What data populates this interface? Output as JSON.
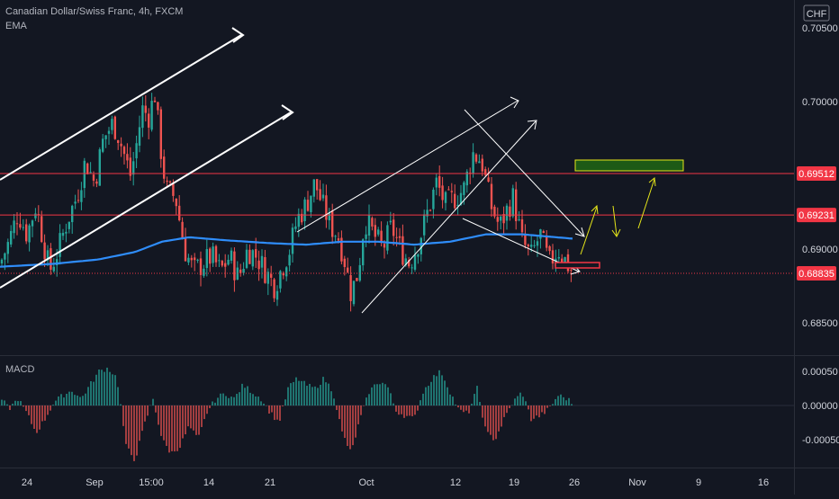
{
  "header": {
    "symbol_line": "Canadian Dollar/Swiss Franc, 4h, FXCM",
    "indicator": "EMA",
    "currency": "CHF"
  },
  "colors": {
    "background": "#131722",
    "candle_up": "#26a69a",
    "candle_down": "#ef5350",
    "ema_line": "#2f8dfa",
    "resistance_line": "#f23645",
    "drawing_white": "#ffffff",
    "drawing_yellow": "#e6e619",
    "target_box": "#1e5a16",
    "target_box_border": "#e6e619",
    "price_label_bg": "#f23645",
    "gridline": "#1e222d",
    "axis_text": "#d1d4dc"
  },
  "chart_data": [
    {
      "type": "candlestick",
      "title": "Canadian Dollar/Swiss Franc, 4h, FXCM",
      "ylim": [
        0.682,
        0.707
      ],
      "y_ticks": [
        "0.70500",
        "0.70000",
        "0.69000",
        "0.68500"
      ],
      "x_ticks": [
        "24",
        "Sep",
        "15:00",
        "14",
        "21",
        "Oct",
        "12",
        "19",
        "26",
        "Nov",
        "9",
        "16"
      ],
      "price_labels": [
        {
          "label": "0.69512",
          "value": 0.69512
        },
        {
          "label": "0.69231",
          "value": 0.69231
        },
        {
          "label": "0.68835",
          "value": 0.68835
        }
      ],
      "horizontal_levels": [
        0.69512,
        0.69231
      ],
      "current_price": 0.68835,
      "close_path": [
        [
          0,
          0.689
        ],
        [
          10,
          0.6905
        ],
        [
          20,
          0.6925
        ],
        [
          30,
          0.691
        ],
        [
          40,
          0.693
        ],
        [
          55,
          0.6885
        ],
        [
          65,
          0.69
        ],
        [
          75,
          0.692
        ],
        [
          85,
          0.6935
        ],
        [
          95,
          0.696
        ],
        [
          105,
          0.6945
        ],
        [
          115,
          0.6975
        ],
        [
          125,
          0.6985
        ],
        [
          130,
          0.698
        ],
        [
          135,
          0.697
        ],
        [
          145,
          0.695
        ],
        [
          150,
          0.6965
        ],
        [
          158,
          0.6995
        ],
        [
          165,
          0.699
        ],
        [
          172,
          0.7005
        ],
        [
          180,
          0.696
        ],
        [
          185,
          0.694
        ],
        [
          195,
          0.6935
        ],
        [
          205,
          0.69
        ],
        [
          215,
          0.6885
        ],
        [
          225,
          0.689
        ],
        [
          235,
          0.6895
        ],
        [
          245,
          0.6885
        ],
        [
          255,
          0.6895
        ],
        [
          265,
          0.688
        ],
        [
          275,
          0.69
        ],
        [
          285,
          0.6895
        ],
        [
          295,
          0.6885
        ],
        [
          305,
          0.6875
        ],
        [
          315,
          0.689
        ],
        [
          322,
          0.69
        ],
        [
          330,
          0.692
        ],
        [
          340,
          0.693
        ],
        [
          350,
          0.6945
        ],
        [
          358,
          0.693
        ],
        [
          368,
          0.6915
        ],
        [
          375,
          0.691
        ],
        [
          382,
          0.6895
        ],
        [
          390,
          0.687
        ],
        [
          398,
          0.6885
        ],
        [
          405,
          0.692
        ],
        [
          415,
          0.691
        ],
        [
          425,
          0.69
        ],
        [
          435,
          0.6915
        ],
        [
          445,
          0.69
        ],
        [
          455,
          0.689
        ],
        [
          465,
          0.6905
        ],
        [
          475,
          0.6925
        ],
        [
          485,
          0.6945
        ],
        [
          495,
          0.693
        ],
        [
          505,
          0.6935
        ],
        [
          515,
          0.694
        ],
        [
          525,
          0.6965
        ],
        [
          535,
          0.696
        ],
        [
          545,
          0.693
        ],
        [
          555,
          0.6915
        ],
        [
          562,
          0.6925
        ],
        [
          570,
          0.6935
        ],
        [
          580,
          0.6905
        ],
        [
          590,
          0.6895
        ],
        [
          600,
          0.691
        ],
        [
          610,
          0.689
        ],
        [
          620,
          0.69
        ],
        [
          630,
          0.689
        ],
        [
          637,
          0.68835
        ]
      ],
      "ema_path": [
        [
          0,
          0.6888
        ],
        [
          60,
          0.689
        ],
        [
          110,
          0.6893
        ],
        [
          150,
          0.6898
        ],
        [
          180,
          0.6905
        ],
        [
          210,
          0.6908
        ],
        [
          250,
          0.6906
        ],
        [
          300,
          0.6904
        ],
        [
          340,
          0.6903
        ],
        [
          380,
          0.6905
        ],
        [
          420,
          0.6905
        ],
        [
          460,
          0.6903
        ],
        [
          500,
          0.6905
        ],
        [
          540,
          0.691
        ],
        [
          580,
          0.691
        ],
        [
          637,
          0.6907
        ]
      ]
    },
    {
      "type": "bar",
      "title": "MACD",
      "ylim": [
        -0.0007,
        0.0007
      ],
      "y_ticks": [
        "0.00050",
        "0.00000",
        "-0.00050"
      ],
      "histogram_path": [
        [
          0,
          0.00012
        ],
        [
          10,
          -5e-05
        ],
        [
          20,
          0.0001
        ],
        [
          30,
          -0.00012
        ],
        [
          40,
          -0.0004
        ],
        [
          50,
          -0.0002
        ],
        [
          60,
          5e-05
        ],
        [
          70,
          0.00015
        ],
        [
          80,
          0.00022
        ],
        [
          90,
          0.0001
        ],
        [
          100,
          0.0003
        ],
        [
          110,
          0.0005
        ],
        [
          120,
          0.00055
        ],
        [
          130,
          0.0004
        ],
        [
          140,
          -0.0006
        ],
        [
          150,
          -0.0008
        ],
        [
          160,
          -0.0003
        ],
        [
          170,
          0.0001
        ],
        [
          180,
          -0.0005
        ],
        [
          190,
          -0.0007
        ],
        [
          200,
          -0.0006
        ],
        [
          210,
          -0.0003
        ],
        [
          220,
          -0.0005
        ],
        [
          230,
          -0.0001
        ],
        [
          240,
          0.0001
        ],
        [
          250,
          0.00018
        ],
        [
          260,
          0.0001
        ],
        [
          270,
          0.0003
        ],
        [
          280,
          0.0002
        ],
        [
          290,
          0.0001
        ],
        [
          300,
          -0.0001
        ],
        [
          310,
          -0.00025
        ],
        [
          320,
          0.00025
        ],
        [
          330,
          0.0004
        ],
        [
          340,
          0.0003
        ],
        [
          350,
          0.00025
        ],
        [
          360,
          0.0004
        ],
        [
          370,
          0.0002
        ],
        [
          380,
          -0.0004
        ],
        [
          390,
          -0.0007
        ],
        [
          400,
          -0.0002
        ],
        [
          410,
          0.0002
        ],
        [
          420,
          0.00035
        ],
        [
          430,
          0.0003
        ],
        [
          440,
          -8e-05
        ],
        [
          450,
          -0.00015
        ],
        [
          460,
          -0.0002
        ],
        [
          470,
          0.0002
        ],
        [
          480,
          0.0004
        ],
        [
          490,
          0.0005
        ],
        [
          500,
          0.0002
        ],
        [
          510,
          -8e-05
        ],
        [
          520,
          -0.00012
        ],
        [
          530,
          0.00025
        ],
        [
          540,
          -0.0004
        ],
        [
          550,
          -0.0005
        ],
        [
          560,
          -0.0002
        ],
        [
          570,
          5e-05
        ],
        [
          580,
          0.0002
        ],
        [
          590,
          -0.0002
        ],
        [
          600,
          -0.00015
        ],
        [
          610,
          -5e-05
        ],
        [
          620,
          0.00015
        ],
        [
          630,
          0.0001
        ],
        [
          637,
          2e-05
        ]
      ]
    }
  ]
}
